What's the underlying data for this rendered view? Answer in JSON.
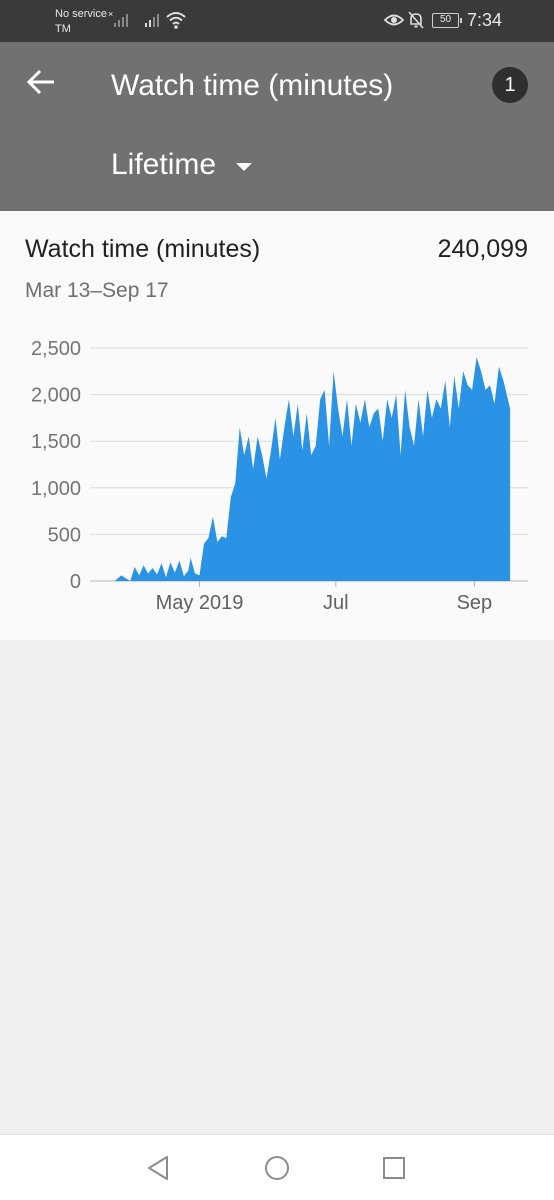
{
  "status_bar": {
    "carrier_line1": "No service",
    "carrier_x": "×",
    "carrier_line2": "TM",
    "battery": "50",
    "time": "7:34",
    "icons": [
      "signal-icon",
      "wifi-icon",
      "eye-icon",
      "bell-off-icon",
      "battery-icon"
    ]
  },
  "app_bar": {
    "title": "Watch time (minutes)",
    "badge": "1",
    "range": "Lifetime",
    "back_icon": "back-arrow-icon"
  },
  "card": {
    "title": "Watch time (minutes)",
    "total": "240,099",
    "date_range": "Mar 13–Sep 17"
  },
  "chart_data": {
    "type": "area",
    "color": "#2b93e6",
    "ylim": [
      0,
      2500
    ],
    "y_ticks": [
      0,
      500,
      1000,
      1500,
      2000,
      2500
    ],
    "y_tick_labels": [
      "0",
      "500",
      "1,000",
      "1,500",
      "2,000",
      "2,500"
    ],
    "x_range": [
      "2019-03-13",
      "2019-09-25"
    ],
    "x_ticks": [
      {
        "date": "2019-05-01",
        "label": "May 2019"
      },
      {
        "date": "2019-07-01",
        "label": "Jul"
      },
      {
        "date": "2019-09-01",
        "label": "Sep"
      }
    ],
    "grid": true,
    "series": [
      {
        "x": [
          "2019-03-24",
          "2019-03-27",
          "2019-03-29",
          "2019-03-31",
          "2019-04-02",
          "2019-04-04",
          "2019-04-06",
          "2019-04-08",
          "2019-04-10",
          "2019-04-12",
          "2019-04-14",
          "2019-04-16",
          "2019-04-18",
          "2019-04-20",
          "2019-04-22",
          "2019-04-24",
          "2019-04-26",
          "2019-04-27",
          "2019-04-29",
          "2019-05-01",
          "2019-05-02",
          "2019-05-03",
          "2019-05-05",
          "2019-05-07",
          "2019-05-09",
          "2019-05-11",
          "2019-05-13",
          "2019-05-15",
          "2019-05-17",
          "2019-05-19",
          "2019-05-21",
          "2019-05-23",
          "2019-05-25",
          "2019-05-27",
          "2019-05-29",
          "2019-05-31",
          "2019-06-02",
          "2019-06-04",
          "2019-06-06",
          "2019-06-08",
          "2019-06-10",
          "2019-06-12",
          "2019-06-14",
          "2019-06-16",
          "2019-06-18",
          "2019-06-20",
          "2019-06-22",
          "2019-06-24",
          "2019-06-26",
          "2019-06-28",
          "2019-06-30",
          "2019-07-02",
          "2019-07-04",
          "2019-07-06",
          "2019-07-08",
          "2019-07-10",
          "2019-07-12",
          "2019-07-14",
          "2019-07-16",
          "2019-07-18",
          "2019-07-20",
          "2019-07-22",
          "2019-07-24",
          "2019-07-26",
          "2019-07-28",
          "2019-07-30",
          "2019-08-01",
          "2019-08-03",
          "2019-08-05",
          "2019-08-07",
          "2019-08-09",
          "2019-08-11",
          "2019-08-13",
          "2019-08-15",
          "2019-08-17",
          "2019-08-19",
          "2019-08-21",
          "2019-08-23",
          "2019-08-25",
          "2019-08-27",
          "2019-08-29",
          "2019-08-31",
          "2019-09-02",
          "2019-09-04",
          "2019-09-06",
          "2019-09-08",
          "2019-09-10",
          "2019-09-12",
          "2019-09-14",
          "2019-09-16",
          "2019-09-17"
        ],
        "y": [
          0,
          60,
          30,
          0,
          150,
          60,
          170,
          80,
          140,
          70,
          190,
          40,
          200,
          90,
          220,
          50,
          110,
          250,
          80,
          60,
          230,
          400,
          460,
          690,
          420,
          480,
          460,
          900,
          1050,
          1650,
          1350,
          1550,
          1200,
          1550,
          1350,
          1100,
          1400,
          1750,
          1300,
          1650,
          1950,
          1550,
          1900,
          1400,
          1800,
          1350,
          1450,
          1950,
          2050,
          1450,
          2250,
          1850,
          1550,
          1950,
          1450,
          1900,
          1700,
          1950,
          1650,
          1800,
          1850,
          1500,
          1950,
          1750,
          2000,
          1350,
          2050,
          1650,
          1450,
          1950,
          1550,
          2050,
          1750,
          1950,
          1850,
          2150,
          1650,
          2200,
          1850,
          2250,
          2100,
          2050,
          2400,
          2250,
          2050,
          2100,
          1900,
          2300,
          2150,
          1950,
          1850
        ]
      }
    ]
  },
  "nav_bar": {
    "buttons": [
      "nav-back-icon",
      "nav-home-icon",
      "nav-recents-icon"
    ]
  }
}
